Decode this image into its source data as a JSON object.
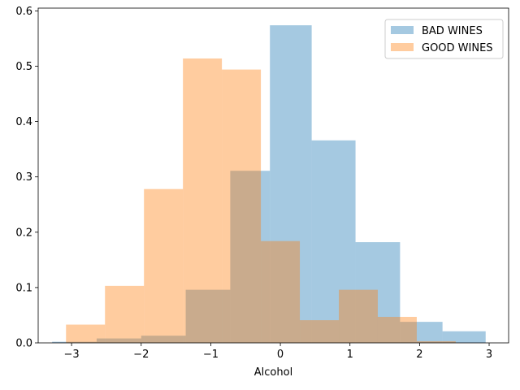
{
  "chart_data": {
    "type": "histogram",
    "xlabel": "Alcohol",
    "ylabel": "",
    "title": "",
    "xlim": [
      -3.48,
      3.28
    ],
    "ylim": [
      0,
      0.605
    ],
    "xticks": [
      -3,
      -2,
      -1,
      0,
      1,
      2,
      3
    ],
    "yticks": [
      0.0,
      0.1,
      0.2,
      0.3,
      0.4,
      0.5,
      0.6
    ],
    "xtick_labels": [
      "−3",
      "−2",
      "−1",
      "0",
      "1",
      "2",
      "3"
    ],
    "ytick_labels": [
      "0.0",
      "0.1",
      "0.2",
      "0.3",
      "0.4",
      "0.5",
      "0.6"
    ],
    "grid": false,
    "legend_position": "top-right",
    "series": [
      {
        "name": "BAD WINES",
        "color": "#1f77b4",
        "alpha": 0.4,
        "bins": [
          {
            "x0": -3.28,
            "x1": -2.64,
            "value": 0.002
          },
          {
            "x0": -2.64,
            "x1": -2.0,
            "value": 0.008
          },
          {
            "x0": -2.0,
            "x1": -1.36,
            "value": 0.013
          },
          {
            "x0": -1.36,
            "x1": -0.72,
            "value": 0.096
          },
          {
            "x0": -0.72,
            "x1": -0.15,
            "value": 0.311
          },
          {
            "x0": -0.15,
            "x1": 0.45,
            "value": 0.574
          },
          {
            "x0": 0.45,
            "x1": 1.08,
            "value": 0.366
          },
          {
            "x0": 1.08,
            "x1": 1.72,
            "value": 0.182
          },
          {
            "x0": 1.72,
            "x1": 2.33,
            "value": 0.038
          },
          {
            "x0": 2.33,
            "x1": 2.95,
            "value": 0.021
          }
        ]
      },
      {
        "name": "GOOD WINES",
        "color": "#ff7f0e",
        "alpha": 0.4,
        "bins": [
          {
            "x0": -3.08,
            "x1": -2.52,
            "value": 0.033
          },
          {
            "x0": -2.52,
            "x1": -1.96,
            "value": 0.103
          },
          {
            "x0": -1.96,
            "x1": -1.4,
            "value": 0.278
          },
          {
            "x0": -1.4,
            "x1": -0.84,
            "value": 0.514
          },
          {
            "x0": -0.84,
            "x1": -0.28,
            "value": 0.494
          },
          {
            "x0": -0.28,
            "x1": 0.28,
            "value": 0.184
          },
          {
            "x0": 0.28,
            "x1": 0.84,
            "value": 0.041
          },
          {
            "x0": 0.84,
            "x1": 1.4,
            "value": 0.096
          },
          {
            "x0": 1.4,
            "x1": 1.96,
            "value": 0.047
          },
          {
            "x0": 1.96,
            "x1": 2.52,
            "value": 0.003
          }
        ]
      }
    ]
  }
}
